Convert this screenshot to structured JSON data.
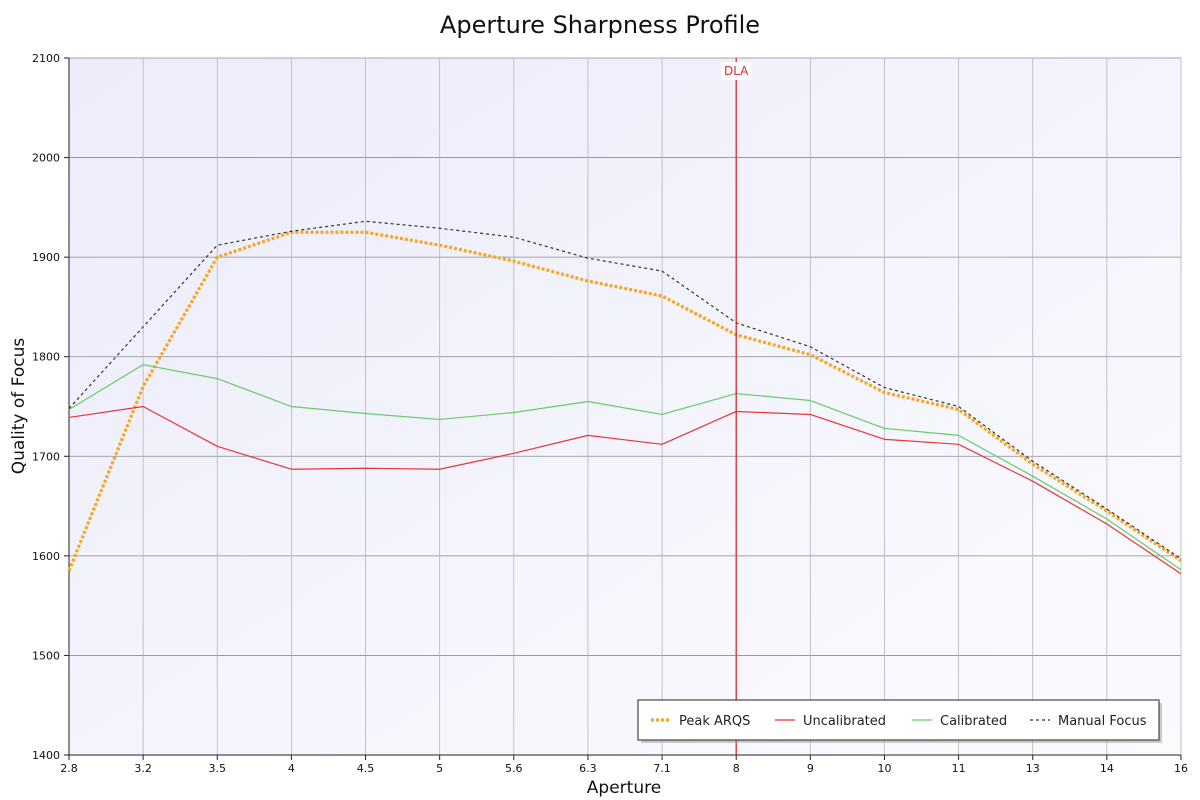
{
  "chart_data": {
    "type": "line",
    "title": "Aperture Sharpness Profile",
    "xlabel": "Aperture",
    "ylabel": "Quality of Focus",
    "categories": [
      "2.8",
      "3.2",
      "3.5",
      "4",
      "4.5",
      "5",
      "5.6",
      "6.3",
      "7.1",
      "8",
      "9",
      "10",
      "11",
      "13",
      "14",
      "16"
    ],
    "ylim": [
      1400,
      2100
    ],
    "yticks": [
      1400,
      1500,
      1600,
      1700,
      1800,
      1900,
      2000,
      2100
    ],
    "grid": true,
    "legend_position": "bottom-right",
    "series": [
      {
        "name": "Peak ARQS",
        "color": "#f5a623",
        "style": "dotted",
        "values": [
          1585,
          1770,
          1900,
          1925,
          1925,
          1912,
          1896,
          1876,
          1861,
          1822,
          1802,
          1764,
          1747,
          1692,
          1645,
          1595
        ]
      },
      {
        "name": "Uncalibrated",
        "color": "#e8353a",
        "style": "solid",
        "values": [
          1739,
          1750,
          1710,
          1687,
          1688,
          1687,
          1703,
          1721,
          1712,
          1745,
          1742,
          1717,
          1712,
          1675,
          1632,
          1582
        ]
      },
      {
        "name": "Calibrated",
        "color": "#66cc66",
        "style": "solid",
        "values": [
          1747,
          1792,
          1778,
          1750,
          1743,
          1737,
          1744,
          1755,
          1742,
          1763,
          1756,
          1728,
          1721,
          1680,
          1637,
          1586
        ]
      },
      {
        "name": "Manual Focus",
        "color": "#333333",
        "style": "dashed",
        "values": [
          1748,
          1830,
          1912,
          1926,
          1936,
          1929,
          1920,
          1899,
          1886,
          1834,
          1810,
          1769,
          1750,
          1695,
          1647,
          1597
        ]
      }
    ],
    "annotations": [
      {
        "label": "DLA",
        "x": "8",
        "color": "#d42020"
      }
    ]
  }
}
